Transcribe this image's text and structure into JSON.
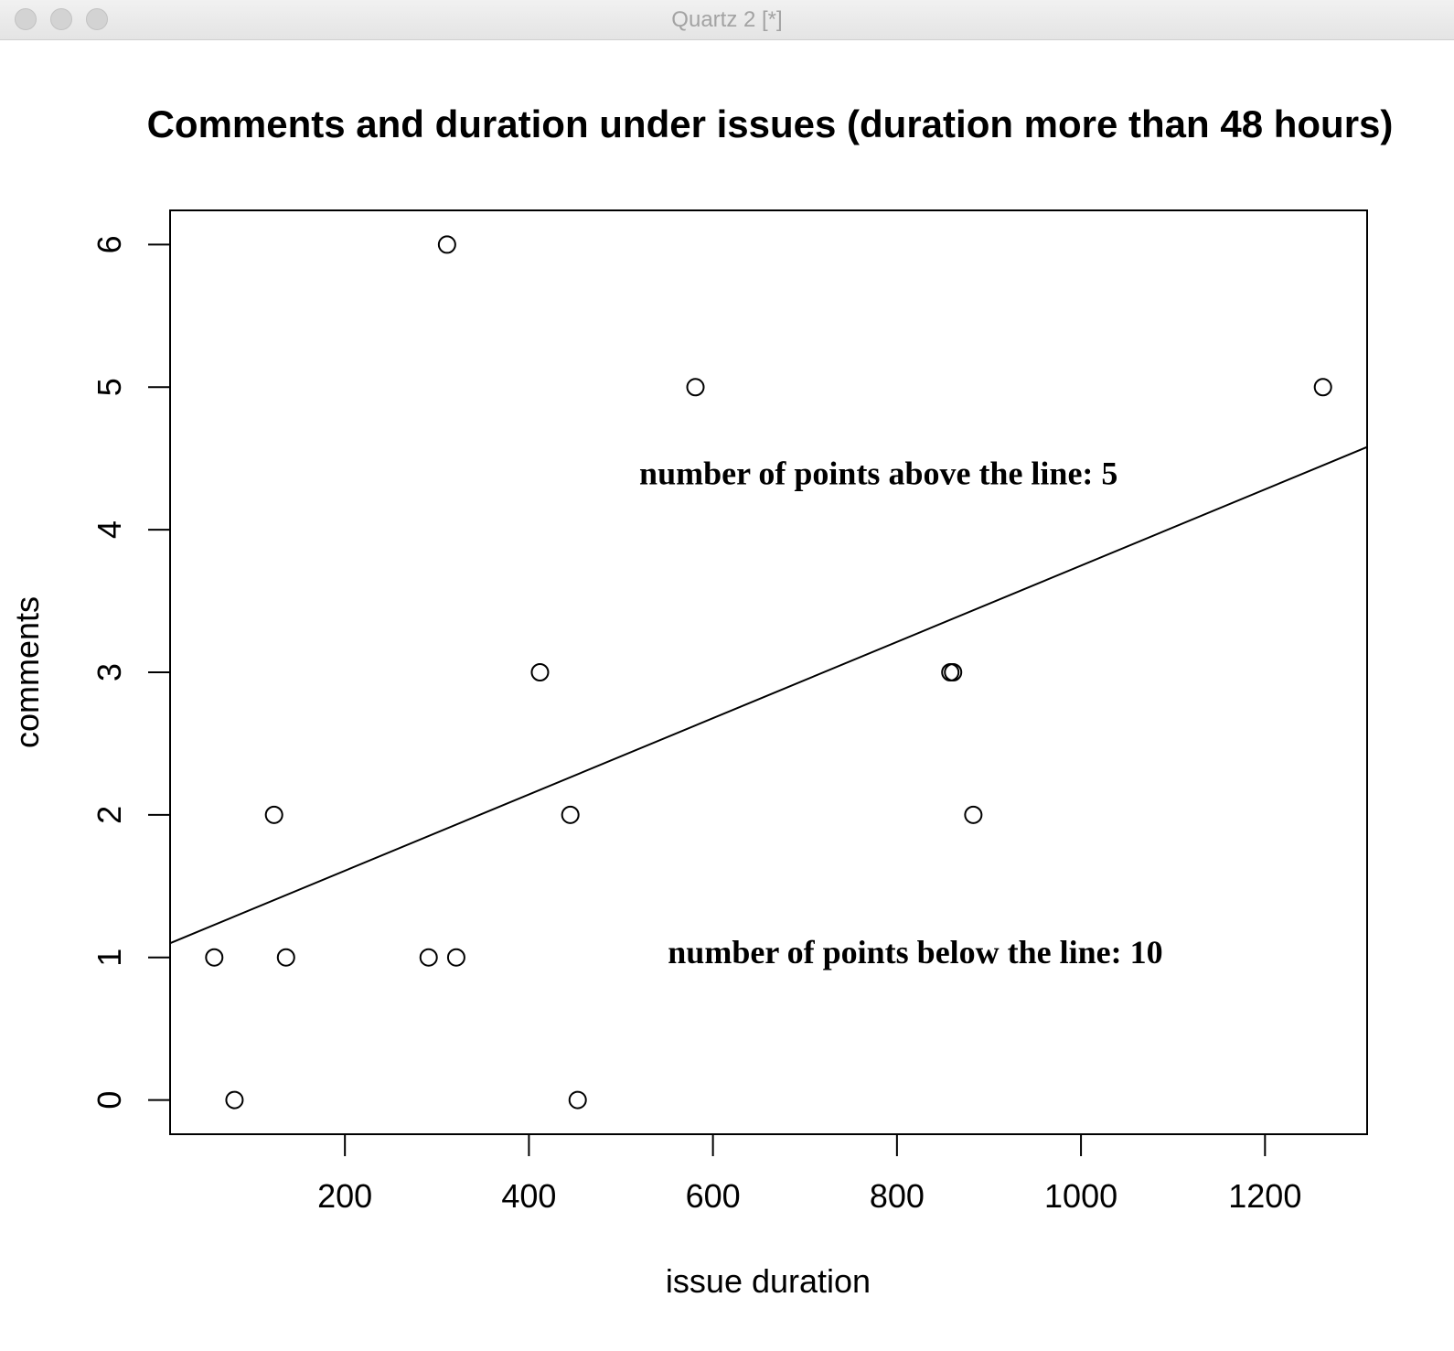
{
  "window": {
    "title": "Quartz 2 [*]"
  },
  "chart_data": {
    "type": "scatter",
    "title": "Comments and duration under issues (duration more than 48 hours)",
    "xlabel": "issue duration",
    "ylabel": "comments",
    "xlim": [
      10,
      1311
    ],
    "ylim": [
      -0.24,
      6.24
    ],
    "x_ticks": [
      200,
      400,
      600,
      800,
      1000,
      1200
    ],
    "y_ticks": [
      0,
      1,
      2,
      3,
      4,
      5,
      6
    ],
    "grid": false,
    "marker": "open-circle",
    "points": [
      {
        "x": 58,
        "y": 1
      },
      {
        "x": 80,
        "y": 0
      },
      {
        "x": 123,
        "y": 2
      },
      {
        "x": 136,
        "y": 1
      },
      {
        "x": 291,
        "y": 1
      },
      {
        "x": 311,
        "y": 6
      },
      {
        "x": 321,
        "y": 1
      },
      {
        "x": 412,
        "y": 3
      },
      {
        "x": 445,
        "y": 2
      },
      {
        "x": 453,
        "y": 0
      },
      {
        "x": 581,
        "y": 5
      },
      {
        "x": 858,
        "y": 3
      },
      {
        "x": 861,
        "y": 3
      },
      {
        "x": 883,
        "y": 2
      },
      {
        "x": 1263,
        "y": 5
      }
    ],
    "regression_line": {
      "x": [
        10,
        1311
      ],
      "y": [
        1.1,
        4.58
      ]
    },
    "annotations": [
      {
        "text": "number of points above the line: 5",
        "x": 780,
        "y": 4.32
      },
      {
        "text": "number of points below the line: 10",
        "x": 820,
        "y": 0.96
      }
    ]
  }
}
